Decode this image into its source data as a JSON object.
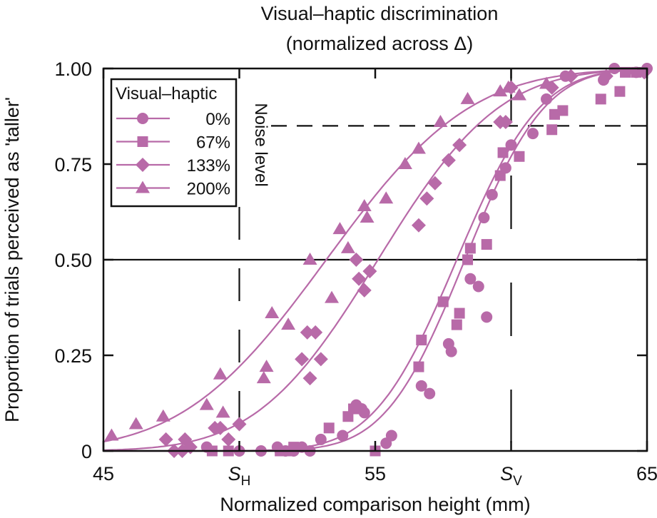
{
  "chart_data": {
    "type": "scatter",
    "title": [
      "Visual–haptic discrimination",
      "(normalized across Δ)"
    ],
    "xlabel": "Normalized comparison height (mm)",
    "ylabel": "Proportion of trials perceived as 'taller'",
    "xlim": [
      45,
      65
    ],
    "ylim": [
      0,
      1
    ],
    "x_ticks": [
      {
        "value": 45,
        "label": "45",
        "sub": ""
      },
      {
        "value": 50,
        "label": "S",
        "sub": "H"
      },
      {
        "value": 55,
        "label": "55",
        "sub": ""
      },
      {
        "value": 60,
        "label": "S",
        "sub": "V"
      },
      {
        "value": 65,
        "label": "65",
        "sub": ""
      }
    ],
    "y_ticks": [
      {
        "value": 0,
        "label": "0"
      },
      {
        "value": 0.25,
        "label": "0.25"
      },
      {
        "value": 0.5,
        "label": "0.50"
      },
      {
        "value": 0.75,
        "label": "0.75"
      },
      {
        "value": 1,
        "label": "1.00"
      }
    ],
    "color": "#b86aa8",
    "legend": {
      "title": "Visual–haptic",
      "placement": "top-left"
    },
    "noise_level": {
      "value": 0.85,
      "label": "Noise level"
    },
    "reference_lines": {
      "S_H": 50,
      "S_V": 60,
      "half": 0.5
    },
    "series": [
      {
        "name": "0%",
        "marker": "circle",
        "fit": {
          "mu": 58.3,
          "sigma": 2.3
        },
        "points": [
          [
            48.8,
            0.01
          ],
          [
            50,
            0
          ],
          [
            50.8,
            0
          ],
          [
            51.4,
            0.01
          ],
          [
            51.7,
            0
          ],
          [
            52.0,
            0
          ],
          [
            52.3,
            0.01
          ],
          [
            52.6,
            0
          ],
          [
            53.0,
            0.03
          ],
          [
            53.8,
            0.04
          ],
          [
            54.3,
            0.12
          ],
          [
            54.5,
            0.11
          ],
          [
            54.6,
            0.1
          ],
          [
            55.4,
            0.02
          ],
          [
            55.6,
            0.04
          ],
          [
            56.7,
            0.17
          ],
          [
            57.0,
            0.15
          ],
          [
            57.7,
            0.28
          ],
          [
            57.8,
            0.26
          ],
          [
            58.5,
            0.45
          ],
          [
            58.8,
            0.43
          ],
          [
            59.1,
            0.35
          ],
          [
            59.0,
            0.61
          ],
          [
            59.3,
            0.67
          ],
          [
            59.8,
            0.74
          ],
          [
            60.0,
            0.8
          ],
          [
            60.8,
            0.83
          ],
          [
            61.3,
            0.92
          ],
          [
            62.0,
            0.98
          ],
          [
            63.4,
            0.97
          ],
          [
            63.8,
            1.0
          ],
          [
            64.6,
            0.99
          ],
          [
            65.0,
            1.0
          ]
        ]
      },
      {
        "name": "67%",
        "marker": "square",
        "fit": {
          "mu": 58.0,
          "sigma": 2.4
        },
        "points": [
          [
            49.0,
            0
          ],
          [
            49.6,
            0
          ],
          [
            51.5,
            0
          ],
          [
            51.8,
            0
          ],
          [
            52.0,
            0.01
          ],
          [
            53.3,
            0.06
          ],
          [
            54.0,
            0.09
          ],
          [
            54.2,
            0.11
          ],
          [
            55.0,
            0
          ],
          [
            56.6,
            0.22
          ],
          [
            56.7,
            0.29
          ],
          [
            57.5,
            0.39
          ],
          [
            58.0,
            0.33
          ],
          [
            58.1,
            0.36
          ],
          [
            58.4,
            0.5
          ],
          [
            58.5,
            0.53
          ],
          [
            59.1,
            0.54
          ],
          [
            59.6,
            0.72
          ],
          [
            59.7,
            0.78
          ],
          [
            60.3,
            0.77
          ],
          [
            61.5,
            0.84
          ],
          [
            61.6,
            0.88
          ],
          [
            61.9,
            0.89
          ],
          [
            63.3,
            0.92
          ],
          [
            64.0,
            0.94
          ],
          [
            64.2,
            0.99
          ],
          [
            64.6,
            0.99
          ]
        ]
      },
      {
        "name": "133%",
        "marker": "diamond",
        "fit": {
          "mu": 55.1,
          "sigma": 3.5
        },
        "points": [
          [
            47.3,
            0.03
          ],
          [
            47.6,
            0
          ],
          [
            47.9,
            0
          ],
          [
            48.0,
            0.03
          ],
          [
            48.2,
            0.01
          ],
          [
            49.1,
            0.06
          ],
          [
            49.3,
            0.06
          ],
          [
            49.6,
            0.03
          ],
          [
            50.0,
            0.07
          ],
          [
            52.3,
            0.24
          ],
          [
            52.5,
            0.31
          ],
          [
            52.6,
            0.19
          ],
          [
            52.8,
            0.31
          ],
          [
            53.0,
            0.24
          ],
          [
            54.3,
            0.5
          ],
          [
            54.4,
            0.45
          ],
          [
            54.6,
            0.42
          ],
          [
            54.8,
            0.47
          ],
          [
            56.6,
            0.59
          ],
          [
            56.9,
            0.66
          ],
          [
            57.2,
            0.7
          ],
          [
            57.7,
            0.76
          ],
          [
            58.1,
            0.8
          ],
          [
            59.6,
            0.86
          ],
          [
            59.8,
            0.86
          ],
          [
            60.0,
            0.95
          ],
          [
            61.5,
            0.95
          ],
          [
            62.2,
            0.98
          ],
          [
            63.5,
            0.98
          ],
          [
            64.9,
            0.99
          ]
        ]
      },
      {
        "name": "200%",
        "marker": "triangle",
        "fit": {
          "mu": 53.2,
          "sigma": 4.15
        },
        "points": [
          [
            45.3,
            0.04
          ],
          [
            46.2,
            0.07
          ],
          [
            47.2,
            0.09
          ],
          [
            48.8,
            0.12
          ],
          [
            49.4,
            0.1
          ],
          [
            49.3,
            0.2
          ],
          [
            50.9,
            0.19
          ],
          [
            51.0,
            0.22
          ],
          [
            51.2,
            0.36
          ],
          [
            51.8,
            0.33
          ],
          [
            52.6,
            0.5
          ],
          [
            53.4,
            0.4
          ],
          [
            53.7,
            0.58
          ],
          [
            54.0,
            0.53
          ],
          [
            54.6,
            0.64
          ],
          [
            54.7,
            0.61
          ],
          [
            55.4,
            0.66
          ],
          [
            56.1,
            0.75
          ],
          [
            56.6,
            0.79
          ],
          [
            57.4,
            0.86
          ],
          [
            58.4,
            0.92
          ],
          [
            59.6,
            0.94
          ],
          [
            59.9,
            0.95
          ],
          [
            60.3,
            0.93
          ],
          [
            61.3,
            0.96
          ]
        ]
      }
    ]
  }
}
